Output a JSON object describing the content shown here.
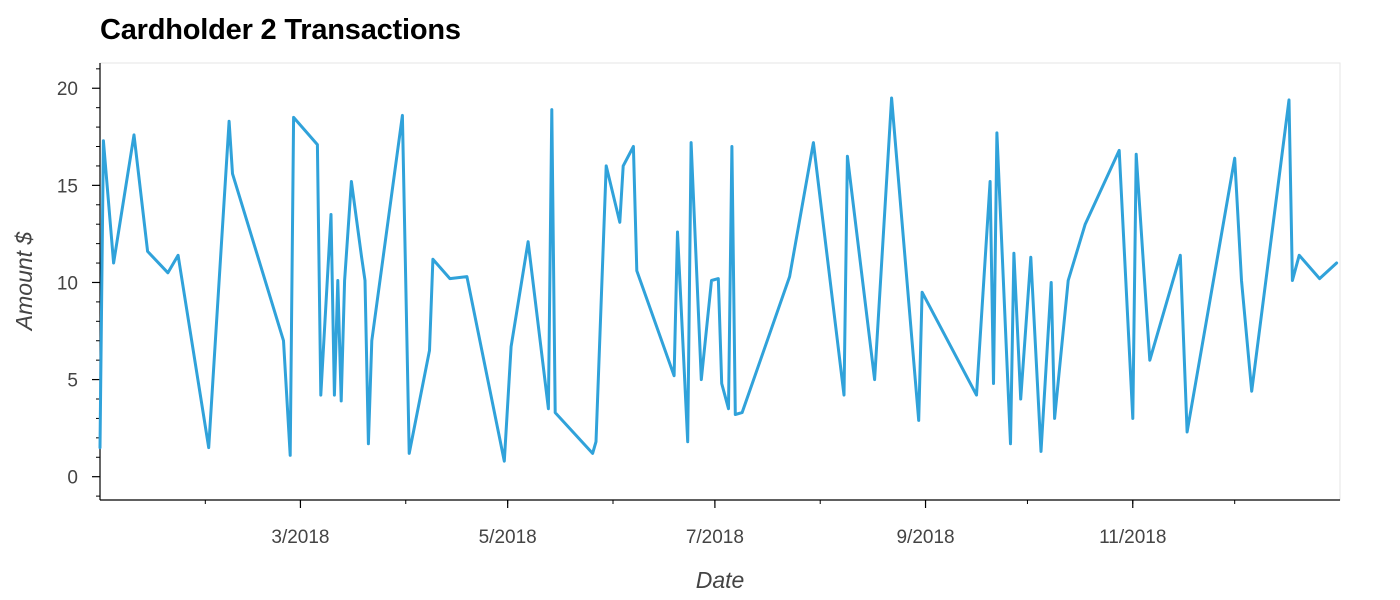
{
  "chart_data": {
    "type": "line",
    "title": "Cardholder 2 Transactions",
    "xlabel": "Date",
    "ylabel": "Amount $",
    "x_type": "date",
    "xlim": [
      "2018-01-01",
      "2018-12-31"
    ],
    "ylim": [
      -1.2,
      21.3
    ],
    "x_ticks": [
      {
        "date": "2018-03-01",
        "label": "3/2018"
      },
      {
        "date": "2018-05-01",
        "label": "5/2018"
      },
      {
        "date": "2018-07-01",
        "label": "7/2018"
      },
      {
        "date": "2018-09-01",
        "label": "9/2018"
      },
      {
        "date": "2018-11-01",
        "label": "11/2018"
      }
    ],
    "y_ticks": [
      0,
      5,
      10,
      15,
      20
    ],
    "grid": false,
    "line_color": "#30a2da",
    "series": [
      {
        "name": "",
        "x": [
          "2018-01-01",
          "2018-01-02",
          "2018-01-05",
          "2018-01-11",
          "2018-01-15",
          "2018-01-21",
          "2018-01-24",
          "2018-02-02",
          "2018-02-08",
          "2018-02-09",
          "2018-02-24",
          "2018-02-26",
          "2018-02-27",
          "2018-03-06",
          "2018-03-07",
          "2018-03-10",
          "2018-03-11",
          "2018-03-12",
          "2018-03-13",
          "2018-03-14",
          "2018-03-16",
          "2018-03-19",
          "2018-03-20",
          "2018-03-21",
          "2018-03-22",
          "2018-03-31",
          "2018-04-02",
          "2018-04-08",
          "2018-04-09",
          "2018-04-14",
          "2018-04-19",
          "2018-04-30",
          "2018-05-02",
          "2018-05-07",
          "2018-05-13",
          "2018-05-14",
          "2018-05-15",
          "2018-05-26",
          "2018-05-27",
          "2018-05-30",
          "2018-06-03",
          "2018-06-04",
          "2018-06-07",
          "2018-06-08",
          "2018-06-19",
          "2018-06-20",
          "2018-06-23",
          "2018-06-24",
          "2018-06-27",
          "2018-06-30",
          "2018-07-02",
          "2018-07-03",
          "2018-07-05",
          "2018-07-06",
          "2018-07-07",
          "2018-07-09",
          "2018-07-23",
          "2018-07-30",
          "2018-08-08",
          "2018-08-09",
          "2018-08-17",
          "2018-08-22",
          "2018-08-30",
          "2018-08-31",
          "2018-09-16",
          "2018-09-20",
          "2018-09-21",
          "2018-09-22",
          "2018-09-26",
          "2018-09-27",
          "2018-09-29",
          "2018-10-02",
          "2018-10-05",
          "2018-10-08",
          "2018-10-09",
          "2018-10-13",
          "2018-10-18",
          "2018-10-28",
          "2018-11-01",
          "2018-11-02",
          "2018-11-06",
          "2018-11-15",
          "2018-11-17",
          "2018-12-01",
          "2018-12-03",
          "2018-12-06",
          "2018-12-17",
          "2018-12-18",
          "2018-12-20",
          "2018-12-26",
          "2018-12-31"
        ],
        "values": [
          1.5,
          17.3,
          11.0,
          17.6,
          11.6,
          10.5,
          11.4,
          1.5,
          18.3,
          15.6,
          7.0,
          1.1,
          18.5,
          17.1,
          4.2,
          13.5,
          4.2,
          10.1,
          3.9,
          10.1,
          15.2,
          11.3,
          10.1,
          1.7,
          7.0,
          18.6,
          1.2,
          6.5,
          11.2,
          10.2,
          10.3,
          0.8,
          6.7,
          12.1,
          3.5,
          18.9,
          3.3,
          1.2,
          1.8,
          16.0,
          13.1,
          16.0,
          17.0,
          10.6,
          5.2,
          12.6,
          1.8,
          17.2,
          5.0,
          10.1,
          10.2,
          4.8,
          3.5,
          17.0,
          3.2,
          3.3,
          10.3,
          17.2,
          4.2,
          16.5,
          5.0,
          19.5,
          2.9,
          9.5,
          4.2,
          15.2,
          4.8,
          17.7,
          1.7,
          11.5,
          4.0,
          11.3,
          1.3,
          10.0,
          3.0,
          10.1,
          13.0,
          16.8,
          3.0,
          16.6,
          6.0,
          11.4,
          2.3,
          16.4,
          10.1,
          4.4,
          19.4,
          10.1,
          11.4,
          10.2,
          11.0
        ]
      }
    ]
  }
}
